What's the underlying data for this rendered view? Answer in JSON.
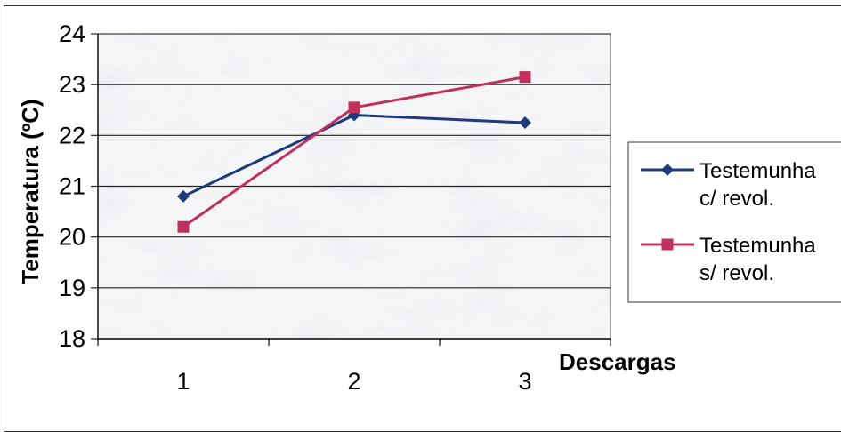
{
  "chart_data": {
    "type": "line",
    "categories": [
      "1",
      "2",
      "3"
    ],
    "xlabel": "Descargas",
    "ylabel": "Temperatura (ºC)",
    "ylim": [
      18,
      24
    ],
    "yticks": [
      "18",
      "19",
      "20",
      "21",
      "22",
      "23",
      "24"
    ],
    "grid": "horizontal",
    "legend_position": "right",
    "series": [
      {
        "name": "Testemunha c/ revol.",
        "legend_lines": [
          "Testemunha",
          "c/ revol."
        ],
        "values": [
          20.8,
          22.4,
          22.25
        ],
        "color": "#1f3a7a",
        "marker": "diamond"
      },
      {
        "name": "Testemunha s/ revol.",
        "legend_lines": [
          "Testemunha",
          "s/ revol."
        ],
        "values": [
          20.2,
          22.55,
          23.15
        ],
        "color": "#c0305a",
        "marker": "square"
      }
    ],
    "plot_background": "marble texture"
  }
}
